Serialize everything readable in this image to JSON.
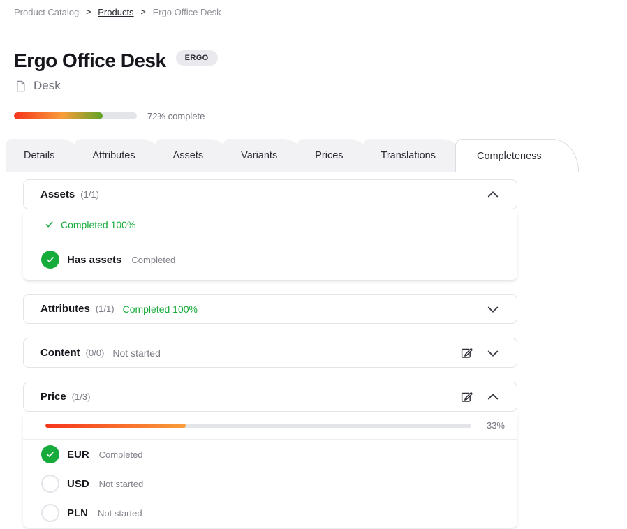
{
  "breadcrumb": {
    "separator": ">",
    "items": [
      {
        "label": "Product Catalog"
      },
      {
        "label": "Products"
      },
      {
        "label": "Ergo Office Desk"
      }
    ]
  },
  "header": {
    "title": "Ergo Office Desk",
    "badge": "ERGO",
    "template": "Desk"
  },
  "progress": {
    "percent": 72,
    "label": "72% complete"
  },
  "tabs": [
    {
      "label": "Details",
      "active": false
    },
    {
      "label": "Attributes",
      "active": false
    },
    {
      "label": "Assets",
      "active": false
    },
    {
      "label": "Variants",
      "active": false
    },
    {
      "label": "Prices",
      "active": false
    },
    {
      "label": "Translations",
      "active": false
    },
    {
      "label": "Completeness",
      "active": true
    }
  ],
  "sections": [
    {
      "name": "Assets",
      "count": "(1/1)",
      "expanded": true,
      "summary": "Completed 100%",
      "items": [
        {
          "label": "Has assets",
          "status": "Completed",
          "state": "completed"
        }
      ]
    },
    {
      "name": "Attributes",
      "count": "(1/1)",
      "expanded": false,
      "header_status": "Completed 100%"
    },
    {
      "name": "Content",
      "count": "(0/0)",
      "expanded": false,
      "header_status": "Not started"
    },
    {
      "name": "Price",
      "count": "(1/3)",
      "expanded": true,
      "progress": {
        "percent": 33,
        "label": "33%"
      },
      "items": [
        {
          "label": "EUR",
          "status": "Completed",
          "state": "completed"
        },
        {
          "label": "USD",
          "status": "Not started",
          "state": "empty"
        },
        {
          "label": "PLN",
          "status": "Not started",
          "state": "empty"
        }
      ]
    }
  ],
  "colors": {
    "accent_green": "#17ab3c",
    "progress_red": "#f5351c",
    "progress_orange": "#f99d3a",
    "progress_green": "#5fa327",
    "track_gray": "#e4e5e9",
    "tab_inactive_bg": "#f2f2f5",
    "border_gray": "#dcdce3",
    "badge_bg": "#e9e9ee"
  }
}
